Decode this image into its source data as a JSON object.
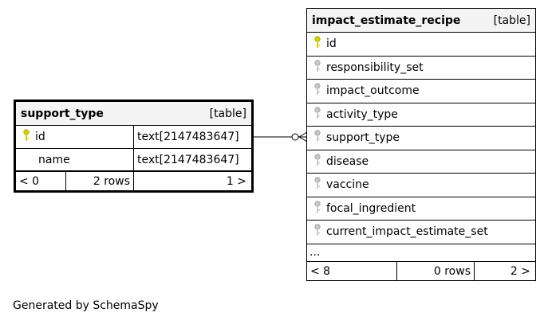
{
  "support_type": {
    "name": "support_type",
    "kind": "[table]",
    "columns": [
      {
        "name": "id",
        "type": "text[2147483647]",
        "key": "primary"
      },
      {
        "name": "name",
        "type": "text[2147483647]",
        "key": "none"
      }
    ],
    "footer": {
      "left": "< 0",
      "mid": "2 rows",
      "right": "1 >"
    }
  },
  "impact_estimate_recipe": {
    "name": "impact_estimate_recipe",
    "kind": "[table]",
    "columns": [
      {
        "name": "id",
        "key": "primary"
      },
      {
        "name": "responsibility_set",
        "key": "foreign"
      },
      {
        "name": "impact_outcome",
        "key": "foreign"
      },
      {
        "name": "activity_type",
        "key": "foreign"
      },
      {
        "name": "support_type",
        "key": "foreign"
      },
      {
        "name": "disease",
        "key": "foreign"
      },
      {
        "name": "vaccine",
        "key": "foreign"
      },
      {
        "name": "focal_ingredient",
        "key": "foreign"
      },
      {
        "name": "current_impact_estimate_set",
        "key": "foreign"
      }
    ],
    "ellipsis": "...",
    "footer": {
      "left": "< 8",
      "mid": "0 rows",
      "right": "2 >"
    }
  },
  "footer_note": "Generated by SchemaSpy",
  "colors": {
    "primary_key": "#d4d400",
    "foreign_key": "#b8b8b8",
    "header_bg": "#f4f4f4"
  }
}
